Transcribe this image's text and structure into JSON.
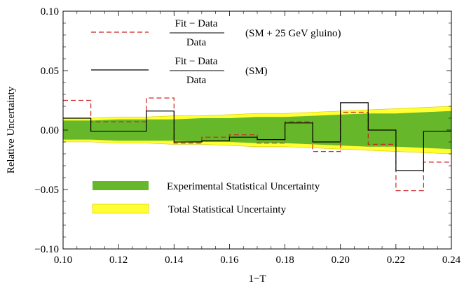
{
  "chart_data": {
    "type": "line",
    "xlabel": "1−T",
    "ylabel": "Relative Uncertainty",
    "xlim": [
      0.1,
      0.24
    ],
    "ylim": [
      -0.1,
      0.1
    ],
    "x_ticks": [
      "0.10",
      "0.12",
      "0.14",
      "0.16",
      "0.18",
      "0.20",
      "0.22",
      "0.24"
    ],
    "x_tick_values": [
      0.1,
      0.12,
      0.14,
      0.16,
      0.18,
      0.2,
      0.22,
      0.24
    ],
    "y_ticks": [
      "0.10",
      "0.05",
      "0.00",
      "−0.05",
      "−0.10"
    ],
    "y_tick_values": [
      0.1,
      0.05,
      0.0,
      -0.05,
      -0.1
    ],
    "bin_edges": [
      0.1,
      0.11,
      0.12,
      0.13,
      0.14,
      0.15,
      0.16,
      0.17,
      0.18,
      0.19,
      0.2,
      0.21,
      0.22,
      0.23,
      0.24
    ],
    "bands": [
      {
        "name": "Total Statistical Uncertainty",
        "color": "#ffff33",
        "upper": [
          0.01,
          0.01,
          0.011,
          0.011,
          0.012,
          0.012,
          0.013,
          0.014,
          0.014,
          0.015,
          0.016,
          0.017,
          0.018,
          0.019,
          0.02
        ],
        "lower": [
          -0.01,
          -0.01,
          -0.011,
          -0.011,
          -0.012,
          -0.012,
          -0.013,
          -0.014,
          -0.014,
          -0.015,
          -0.016,
          -0.017,
          -0.018,
          -0.019,
          -0.02
        ]
      },
      {
        "name": "Experimental Statistical Uncertainty",
        "color": "#66b82a",
        "upper": [
          0.008,
          0.008,
          0.009,
          0.009,
          0.009,
          0.01,
          0.01,
          0.011,
          0.011,
          0.012,
          0.013,
          0.014,
          0.014,
          0.015,
          0.016
        ],
        "lower": [
          -0.008,
          -0.008,
          -0.009,
          -0.009,
          -0.009,
          -0.01,
          -0.01,
          -0.011,
          -0.011,
          -0.012,
          -0.013,
          -0.014,
          -0.014,
          -0.015,
          -0.016
        ]
      }
    ],
    "series": [
      {
        "name": "(SM + 25 GeV gluino)",
        "color": "#cc2222",
        "dash": true,
        "values": [
          0.025,
          0.007,
          0.007,
          0.027,
          -0.011,
          -0.006,
          -0.004,
          -0.011,
          0.007,
          -0.018,
          0.015,
          -0.012,
          -0.051,
          -0.027
        ]
      },
      {
        "name": "(SM)",
        "color": "#000000",
        "dash": false,
        "values": [
          0.01,
          -0.001,
          -0.001,
          0.016,
          -0.01,
          -0.009,
          -0.006,
          -0.008,
          0.006,
          -0.01,
          0.023,
          0.0,
          -0.034,
          -0.001
        ]
      }
    ]
  },
  "legend": {
    "fit_numerator": "Fit − Data",
    "fit_denominator": "Data",
    "entry_gluino": "(SM + 25 GeV gluino)",
    "entry_sm": "(SM)",
    "entry_experimental": "Experimental Statistical Uncertainty",
    "entry_total": "Total Statistical Uncertainty"
  }
}
